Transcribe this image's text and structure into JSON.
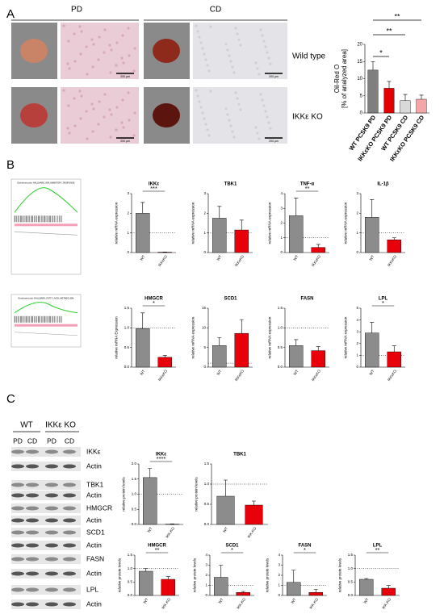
{
  "panels": {
    "A": {
      "letter": "A",
      "columns": [
        "PD",
        "CD"
      ],
      "rows": [
        "Wild type",
        "IKKε KO"
      ],
      "scale_bar": "200 µm"
    },
    "B": {
      "letter": "B",
      "gsea": [
        "Enrichment plot: HALLMARK_INFLAMMATORY_RESPONSE",
        "Enrichment plot: HALLMARK_FATTY_ACID_METABOLISM"
      ]
    },
    "C": {
      "letter": "C",
      "groups": [
        "WT",
        "IKKε KO"
      ],
      "lanes": [
        "PD",
        "CD",
        "PD",
        "CD"
      ],
      "blots": [
        "IKKε",
        "Actin",
        "TBK1",
        "Actin",
        "HMGCR",
        "Actin",
        "SCD1",
        "Actin",
        "FASN",
        "Actin",
        "LPL",
        "Actin"
      ]
    }
  },
  "chart_data": [
    {
      "type": "bar",
      "ylabel": [
        "Oil-Red O",
        "[% of analyzed area]"
      ],
      "categories": [
        "WT PCSK9 PD",
        "IKKεKO PCSK9 PD",
        "WT PCSK9 CD",
        "IKKεKO PCSK9 CD"
      ],
      "values": [
        12.5,
        7.2,
        3.6,
        4.0
      ],
      "errors": [
        2.5,
        2.0,
        1.8,
        1.2
      ],
      "colors": [
        "#7f7f7f",
        "#e00000",
        "#d9d9d9",
        "#f4a6a6"
      ],
      "ylim": [
        0,
        20
      ],
      "yticks": [
        0,
        5,
        10,
        15,
        20
      ],
      "annotations": [
        "*",
        "**",
        "**"
      ]
    },
    {
      "type": "bar",
      "title": "IKKε",
      "ylabel": "relative mRNA expression",
      "categories": [
        "WT",
        "IKKεKO"
      ],
      "values": [
        2.0,
        0.02
      ],
      "errors": [
        0.55,
        0.01
      ],
      "colors": [
        "#8c8c8c",
        "#e8000b"
      ],
      "ylim": [
        0,
        3
      ],
      "yticks": [
        0,
        1,
        2,
        3
      ],
      "reference_line": 1,
      "significance": "***"
    },
    {
      "type": "bar",
      "title": "TBK1",
      "ylabel": "relative mRNA expression",
      "categories": [
        "WT",
        "IKKεKO"
      ],
      "values": [
        1.75,
        1.15
      ],
      "errors": [
        0.6,
        0.5
      ],
      "colors": [
        "#8c8c8c",
        "#e8000b"
      ],
      "ylim": [
        0,
        3
      ],
      "yticks": [
        0,
        1,
        2,
        3
      ],
      "reference_line": 1
    },
    {
      "type": "bar",
      "title": "TNF-α",
      "ylabel": "relative mRNA expression",
      "categories": [
        "WT",
        "IKKεKO"
      ],
      "values": [
        2.5,
        0.35
      ],
      "errors": [
        1.2,
        0.2
      ],
      "colors": [
        "#8c8c8c",
        "#e8000b"
      ],
      "ylim": [
        0,
        4
      ],
      "yticks": [
        0,
        1,
        2,
        3,
        4
      ],
      "reference_line": 1,
      "significance": "**"
    },
    {
      "type": "bar",
      "title": "IL-1β",
      "ylabel": "relative mRNA expression",
      "categories": [
        "WT",
        "IKKεKO"
      ],
      "values": [
        1.8,
        0.65
      ],
      "errors": [
        0.9,
        0.1
      ],
      "colors": [
        "#8c8c8c",
        "#e8000b"
      ],
      "ylim": [
        0,
        3
      ],
      "yticks": [
        0,
        1,
        2,
        3
      ],
      "reference_line": 1
    },
    {
      "type": "bar",
      "title": "HMGCR",
      "ylabel": "relative mRNA Expression",
      "categories": [
        "WT",
        "IKKεKO"
      ],
      "values": [
        0.98,
        0.25
      ],
      "errors": [
        0.4,
        0.05
      ],
      "colors": [
        "#8c8c8c",
        "#e8000b"
      ],
      "ylim": [
        0,
        1.5
      ],
      "yticks": [
        {
          "value": 0,
          "label": "0.0"
        },
        0.5,
        {
          "value": 1,
          "label": "1.0"
        },
        1.5
      ],
      "reference_line": 1,
      "significance": "*"
    },
    {
      "type": "bar",
      "title": "SCD1",
      "ylabel": "relative mRNA expression",
      "categories": [
        "WT",
        "IKKεKO"
      ],
      "values": [
        5.5,
        8.6
      ],
      "errors": [
        2,
        3.5
      ],
      "colors": [
        "#8c8c8c",
        "#e8000b"
      ],
      "ylim": [
        0,
        15
      ],
      "yticks": [
        0,
        5,
        10,
        15
      ],
      "reference_line": 1
    },
    {
      "type": "bar",
      "title": "FASN",
      "ylabel": "relative mRNA expression",
      "categories": [
        "WT",
        "IKKεKO"
      ],
      "values": [
        0.55,
        0.42
      ],
      "errors": [
        0.15,
        0.1
      ],
      "colors": [
        "#8c8c8c",
        "#e8000b"
      ],
      "ylim": [
        0,
        1.5
      ],
      "yticks": [
        {
          "value": 0,
          "label": "0.0"
        },
        0.5,
        {
          "value": 1,
          "label": "1.0"
        },
        1.5
      ],
      "reference_line": 1
    },
    {
      "type": "bar",
      "title": "LPL",
      "ylabel": "relative mRNA expression",
      "categories": [
        "WT",
        "IKKεKO"
      ],
      "values": [
        2.9,
        1.3
      ],
      "errors": [
        0.9,
        0.5
      ],
      "colors": [
        "#8c8c8c",
        "#e8000b"
      ],
      "ylim": [
        0,
        5
      ],
      "yticks": [
        0,
        1,
        2,
        3,
        4,
        5
      ],
      "reference_line": 1,
      "significance": "*"
    },
    {
      "type": "bar",
      "title": "IKKε",
      "ylabel": "relative protein levels",
      "categories": [
        "WT",
        "IKK-KO"
      ],
      "values": [
        1.55,
        0.01
      ],
      "errors": [
        0.3,
        0.01
      ],
      "colors": [
        "#8c8c8c",
        "#e8000b"
      ],
      "ylim": [
        0,
        2
      ],
      "yticks": [
        {
          "value": 0,
          "label": "0.0"
        },
        0.5,
        {
          "value": 1,
          "label": "1.0"
        },
        1.5,
        {
          "value": 2,
          "label": "2.0"
        }
      ],
      "reference_line": 1,
      "significance": "****"
    },
    {
      "type": "bar",
      "title": "TBK1",
      "ylabel": "relative protein levels",
      "categories": [
        "WT",
        "IKK-KO"
      ],
      "values": [
        0.7,
        0.48
      ],
      "errors": [
        0.4,
        0.1
      ],
      "colors": [
        "#8c8c8c",
        "#e8000b"
      ],
      "ylim": [
        0,
        1.5
      ],
      "yticks": [
        {
          "value": 0,
          "label": "0.0"
        },
        0.5,
        {
          "value": 1,
          "label": "1.0"
        },
        1.5
      ],
      "reference_line": 1
    },
    {
      "type": "bar",
      "title": "HMGCR",
      "ylabel": "relative protein levels",
      "categories": [
        "WT",
        "IKK-KO"
      ],
      "values": [
        0.9,
        0.6
      ],
      "errors": [
        0.1,
        0.1
      ],
      "colors": [
        "#8c8c8c",
        "#e8000b"
      ],
      "ylim": [
        0,
        1.5
      ],
      "yticks": [
        {
          "value": 0,
          "label": "0.0"
        },
        0.5,
        {
          "value": 1,
          "label": "1.0"
        },
        1.5
      ],
      "reference_line": 1,
      "significance": "**"
    },
    {
      "type": "bar",
      "title": "SCD1",
      "ylabel": "relative protein levels",
      "categories": [
        "WT",
        "IKK-KO"
      ],
      "values": [
        1.8,
        0.3
      ],
      "errors": [
        1.2,
        0.1
      ],
      "colors": [
        "#8c8c8c",
        "#e8000b"
      ],
      "ylim": [
        0,
        4
      ],
      "yticks": [
        0,
        1,
        2,
        3,
        4
      ],
      "reference_line": 1,
      "significance": "*"
    },
    {
      "type": "bar",
      "title": "FASN",
      "ylabel": "relative protein levels",
      "categories": [
        "WT",
        "IKK-KO"
      ],
      "values": [
        1.3,
        0.3
      ],
      "errors": [
        1.2,
        0.3
      ],
      "colors": [
        "#8c8c8c",
        "#e8000b"
      ],
      "ylim": [
        0,
        4
      ],
      "yticks": [
        0,
        1,
        2,
        3,
        4
      ],
      "reference_line": 1,
      "significance": "*"
    },
    {
      "type": "bar",
      "title": "LPL",
      "ylabel": "relative protein levels",
      "categories": [
        "WT",
        "IKK-KO"
      ],
      "values": [
        0.6,
        0.27
      ],
      "errors": [
        0.03,
        0.1
      ],
      "colors": [
        "#8c8c8c",
        "#e8000b"
      ],
      "ylim": [
        0,
        1.5
      ],
      "yticks": [
        {
          "value": 0,
          "label": "0.0"
        },
        0.5,
        {
          "value": 1,
          "label": "1.0"
        },
        1.5
      ],
      "reference_line": 1,
      "significance": "**"
    }
  ]
}
